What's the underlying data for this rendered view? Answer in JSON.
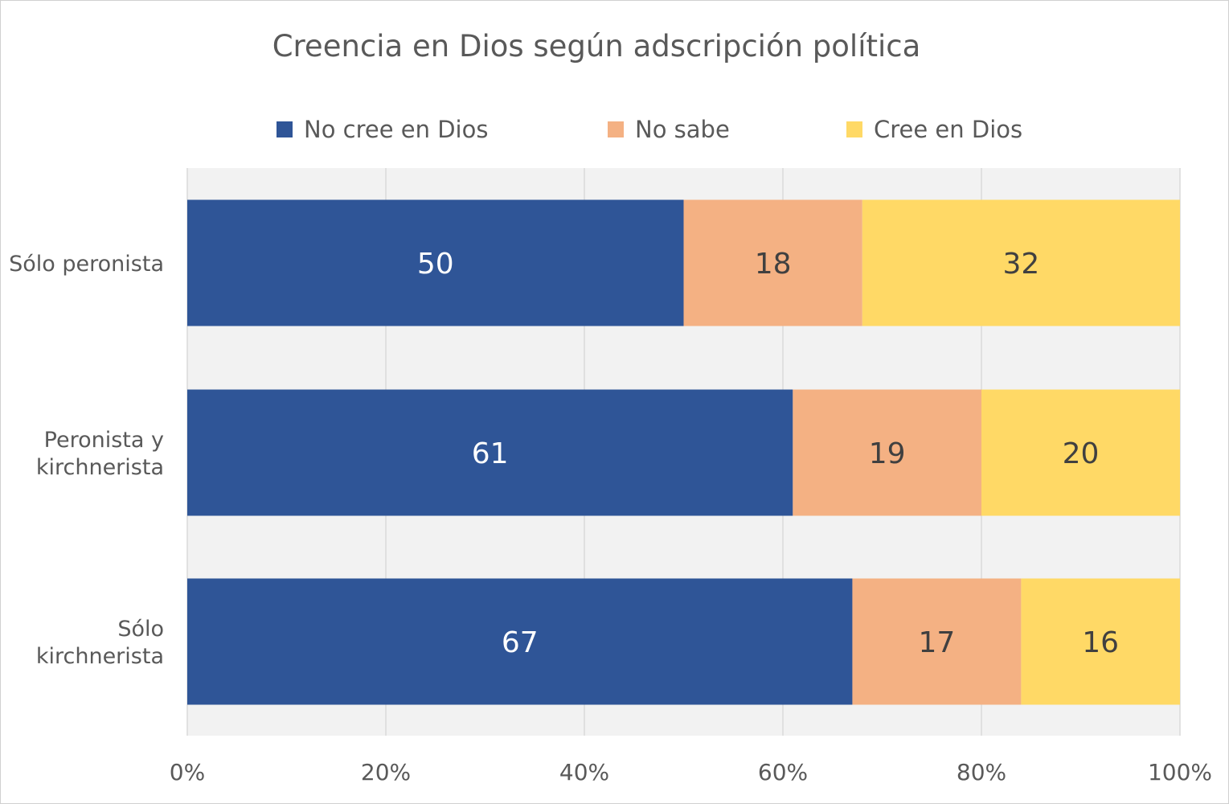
{
  "chart_data": {
    "type": "bar",
    "orientation": "horizontal",
    "stacked": true,
    "title": "Creencia en Dios según adscripción política",
    "categories": [
      "Sólo peronista",
      "Peronista y kirchnerista",
      "Sólo kirchnerista"
    ],
    "category_lines": [
      [
        "Sólo peronista"
      ],
      [
        "Peronista y",
        "kirchnerista"
      ],
      [
        "Sólo",
        "kirchnerista"
      ]
    ],
    "series": [
      {
        "name": "No cree en Dios",
        "color": "#2f5597",
        "label_color": "#ffffff",
        "values": [
          50,
          61,
          67
        ]
      },
      {
        "name": "No sabe",
        "color": "#f4b183",
        "label_color": "#404040",
        "values": [
          18,
          19,
          17
        ]
      },
      {
        "name": "Cree en Dios",
        "color": "#ffd966",
        "label_color": "#404040",
        "values": [
          32,
          20,
          16
        ]
      }
    ],
    "xlim": [
      0,
      100
    ],
    "x_ticks": [
      0,
      20,
      40,
      60,
      80,
      100
    ],
    "x_tick_labels": [
      "0%",
      "20%",
      "40%",
      "60%",
      "80%",
      "100%"
    ],
    "xlabel": "",
    "ylabel": "",
    "grid": true,
    "legend_position": "top",
    "plot_background": "#f2f2f2"
  }
}
